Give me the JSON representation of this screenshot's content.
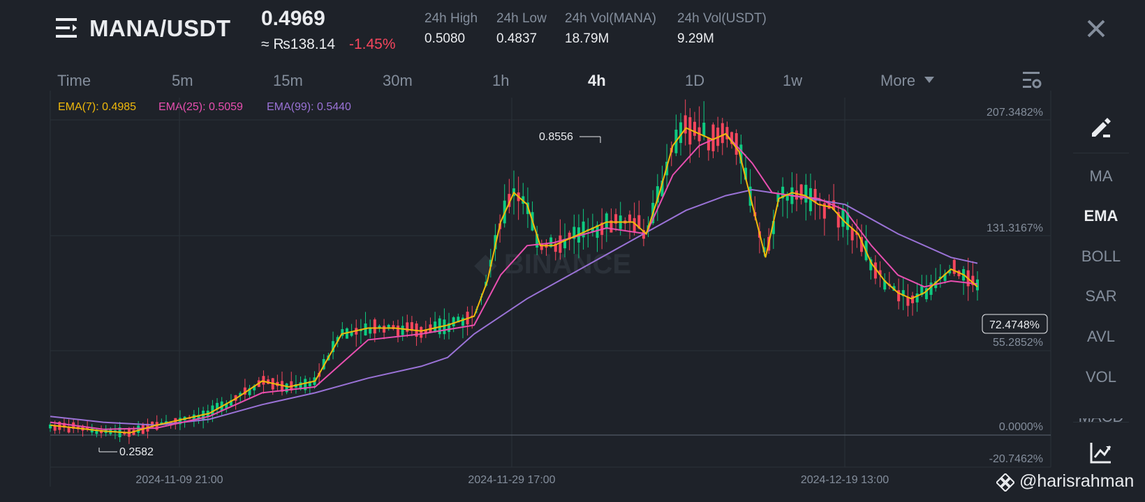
{
  "header": {
    "pair": "MANA/USDT",
    "price": "0.4969",
    "price_fiat": "≈ ₨138.14",
    "change": "-1.45%",
    "stats": [
      {
        "label": "24h High",
        "value": "0.5080"
      },
      {
        "label": "24h Low",
        "value": "0.4837"
      },
      {
        "label": "24h Vol(MANA)",
        "value": "18.79M"
      },
      {
        "label": "24h Vol(USDT)",
        "value": "9.29M"
      }
    ]
  },
  "timeframes": {
    "items": [
      "Time",
      "5m",
      "15m",
      "30m",
      "1h",
      "4h",
      "1D",
      "1w",
      "More"
    ],
    "active": "4h"
  },
  "indicators_legend": {
    "ema7": "EMA(7): 0.4985",
    "ema25": "EMA(25): 0.5059",
    "ema99": "EMA(99): 0.5440"
  },
  "colors": {
    "up": "#0ecb81",
    "down": "#f6465d",
    "ema7": "#f0b90b",
    "ema25": "#e84fb0",
    "ema99": "#9a72d6",
    "text_muted": "#848e9c"
  },
  "icons": {
    "menu": "menu-list-icon",
    "close": "close-icon",
    "settings": "chart-settings-icon",
    "draw": "drawing-tool-icon",
    "analysis": "analysis-chart-icon",
    "watermark_logo": "binance-logo-icon"
  },
  "right_toolbar": {
    "items": [
      "MA",
      "EMA",
      "BOLL",
      "SAR",
      "AVL",
      "VOL",
      "MACD"
    ],
    "active": "EMA"
  },
  "watermark": "@harisrahman",
  "chart_data": {
    "type": "candlestick",
    "y_axis_labels": [
      "207.3482%",
      "131.3167%",
      "55.2852%",
      "0.0000%",
      "-20.7462%"
    ],
    "current_label": "72.4748%",
    "x_axis_labels": [
      "2024-11-09 21:00",
      "2024-11-29 17:00",
      "2024-12-19 13:00"
    ],
    "high_marker": "0.8556",
    "low_marker": "0.2582",
    "ylim_pct": [
      -20.7462,
      207.3482
    ],
    "ema7": [
      [
        0,
        0.275
      ],
      [
        20,
        0.27
      ],
      [
        40,
        0.265
      ],
      [
        60,
        0.262
      ],
      [
        80,
        0.275
      ],
      [
        100,
        0.285
      ],
      [
        120,
        0.295
      ],
      [
        140,
        0.32
      ],
      [
        160,
        0.35
      ],
      [
        180,
        0.34
      ],
      [
        200,
        0.35
      ],
      [
        220,
        0.43
      ],
      [
        240,
        0.44
      ],
      [
        260,
        0.44
      ],
      [
        280,
        0.435
      ],
      [
        300,
        0.445
      ],
      [
        320,
        0.46
      ],
      [
        330,
        0.52
      ],
      [
        340,
        0.62
      ],
      [
        350,
        0.67
      ],
      [
        360,
        0.65
      ],
      [
        370,
        0.58
      ],
      [
        380,
        0.58
      ],
      [
        400,
        0.6
      ],
      [
        420,
        0.62
      ],
      [
        440,
        0.62
      ],
      [
        450,
        0.6
      ],
      [
        460,
        0.67
      ],
      [
        470,
        0.75
      ],
      [
        480,
        0.78
      ],
      [
        490,
        0.77
      ],
      [
        500,
        0.76
      ],
      [
        510,
        0.77
      ],
      [
        520,
        0.74
      ],
      [
        530,
        0.65
      ],
      [
        540,
        0.56
      ],
      [
        550,
        0.66
      ],
      [
        560,
        0.67
      ],
      [
        570,
        0.665
      ],
      [
        580,
        0.65
      ],
      [
        590,
        0.645
      ],
      [
        600,
        0.62
      ],
      [
        610,
        0.6
      ],
      [
        620,
        0.55
      ],
      [
        630,
        0.52
      ],
      [
        640,
        0.5
      ],
      [
        650,
        0.49
      ],
      [
        660,
        0.5
      ],
      [
        670,
        0.52
      ],
      [
        680,
        0.54
      ],
      [
        690,
        0.53
      ],
      [
        700,
        0.51
      ]
    ],
    "ema25": [
      [
        0,
        0.28
      ],
      [
        40,
        0.268
      ],
      [
        80,
        0.27
      ],
      [
        120,
        0.29
      ],
      [
        160,
        0.33
      ],
      [
        200,
        0.34
      ],
      [
        240,
        0.42
      ],
      [
        280,
        0.43
      ],
      [
        320,
        0.445
      ],
      [
        340,
        0.53
      ],
      [
        360,
        0.58
      ],
      [
        380,
        0.585
      ],
      [
        420,
        0.61
      ],
      [
        450,
        0.6
      ],
      [
        470,
        0.7
      ],
      [
        490,
        0.75
      ],
      [
        510,
        0.77
      ],
      [
        530,
        0.72
      ],
      [
        545,
        0.67
      ],
      [
        560,
        0.665
      ],
      [
        580,
        0.66
      ],
      [
        600,
        0.64
      ],
      [
        620,
        0.58
      ],
      [
        640,
        0.53
      ],
      [
        660,
        0.51
      ],
      [
        680,
        0.52
      ],
      [
        700,
        0.515
      ]
    ],
    "ema99": [
      [
        0,
        0.29
      ],
      [
        40,
        0.28
      ],
      [
        80,
        0.275
      ],
      [
        120,
        0.285
      ],
      [
        160,
        0.31
      ],
      [
        200,
        0.33
      ],
      [
        240,
        0.355
      ],
      [
        280,
        0.375
      ],
      [
        300,
        0.39
      ],
      [
        320,
        0.43
      ],
      [
        360,
        0.49
      ],
      [
        400,
        0.54
      ],
      [
        440,
        0.59
      ],
      [
        480,
        0.64
      ],
      [
        510,
        0.665
      ],
      [
        530,
        0.675
      ],
      [
        560,
        0.665
      ],
      [
        600,
        0.65
      ],
      [
        640,
        0.6
      ],
      [
        680,
        0.56
      ],
      [
        700,
        0.55
      ]
    ]
  }
}
